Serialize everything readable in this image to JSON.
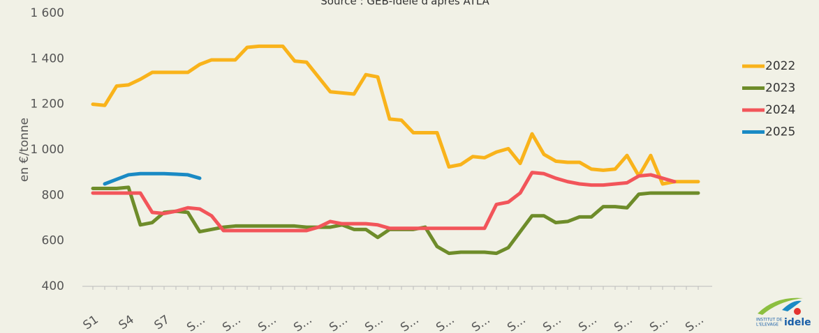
{
  "chart_data": {
    "type": "line",
    "subtitle": "Source : GEB-Idele d'après ATLA",
    "y_label": "en €/tonne",
    "logo": {
      "line1": "INSTITUT DE",
      "line2": "L'ELEVAGE",
      "name": "idele"
    },
    "categories": [
      "S1",
      null,
      null,
      "S4",
      null,
      null,
      "S7",
      null,
      null,
      "S...",
      null,
      null,
      "S...",
      null,
      null,
      "S...",
      null,
      null,
      "S...",
      null,
      null,
      "S...",
      null,
      null,
      "S...",
      null,
      null,
      "S...",
      null,
      null,
      "S...",
      null,
      null,
      "S...",
      null,
      null,
      "S...",
      null,
      null,
      "S...",
      null,
      null,
      "S...",
      null,
      null,
      "S...",
      null,
      null,
      "S...",
      null,
      null,
      "S..."
    ],
    "series": [
      {
        "name": "2022",
        "color": "#f9b31b",
        "values": [
          1200,
          1195,
          1280,
          1285,
          1310,
          1340,
          1340,
          1340,
          1340,
          1375,
          1395,
          1395,
          1395,
          1450,
          1455,
          1455,
          1455,
          1390,
          1385,
          1320,
          1255,
          1250,
          1245,
          1330,
          1320,
          1135,
          1130,
          1075,
          1075,
          1075,
          925,
          935,
          970,
          965,
          990,
          1005,
          940,
          1070,
          980,
          950,
          945,
          945,
          915,
          910,
          915,
          975,
          885,
          975,
          850,
          860,
          860,
          860
        ]
      },
      {
        "name": "2023",
        "color": "#6e8c2a",
        "values": [
          830,
          830,
          830,
          835,
          670,
          680,
          725,
          730,
          725,
          640,
          650,
          660,
          665,
          665,
          665,
          665,
          665,
          665,
          660,
          660,
          660,
          670,
          650,
          650,
          615,
          650,
          650,
          650,
          660,
          575,
          545,
          550,
          550,
          550,
          545,
          570,
          640,
          710,
          710,
          680,
          685,
          705,
          705,
          750,
          750,
          745,
          805,
          810,
          810,
          810,
          810,
          810
        ]
      },
      {
        "name": "2024",
        "color": "#f2555a",
        "values": [
          810,
          810,
          810,
          810,
          810,
          725,
          720,
          730,
          745,
          740,
          710,
          645,
          645,
          645,
          645,
          645,
          645,
          645,
          645,
          660,
          685,
          675,
          675,
          675,
          670,
          655,
          655,
          655,
          655,
          655,
          655,
          655,
          655,
          655,
          760,
          770,
          810,
          900,
          895,
          875,
          860,
          850,
          845,
          845,
          850,
          855,
          885,
          890,
          875,
          860,
          null,
          null
        ]
      },
      {
        "name": "2025",
        "color": "#1a8ac4",
        "values": [
          null,
          850,
          870,
          890,
          895,
          895,
          895,
          893,
          890,
          875,
          null,
          null,
          null,
          null,
          null,
          null,
          null,
          null,
          null,
          null,
          null,
          null,
          null,
          null,
          null,
          null,
          null,
          null,
          null,
          null,
          null,
          null,
          null,
          null,
          null,
          null,
          null,
          null,
          null,
          null,
          null,
          null,
          null,
          null,
          null,
          null,
          null,
          null,
          null,
          null,
          null,
          null
        ]
      }
    ],
    "ylim": [
      400,
      1600
    ],
    "yticks": [
      400,
      600,
      800,
      {
        "value": 1000,
        "label": "1 000"
      },
      {
        "value": 1200,
        "label": "1 200"
      },
      {
        "value": 1400,
        "label": "1 400"
      },
      {
        "value": 1600,
        "label": "1 600"
      }
    ],
    "grid": false,
    "legend": "right"
  }
}
